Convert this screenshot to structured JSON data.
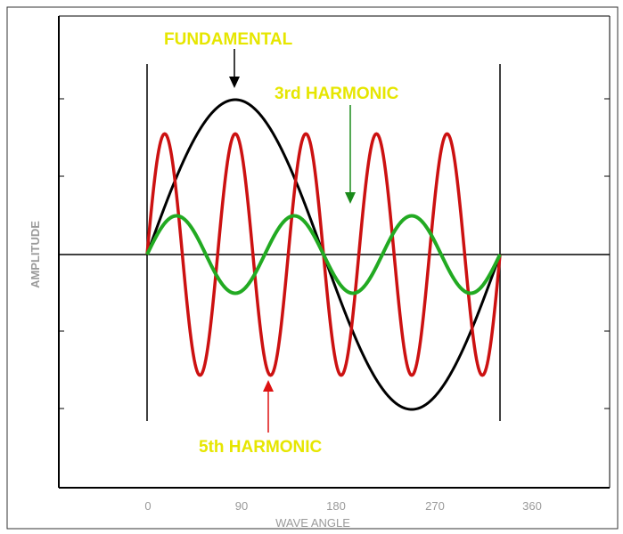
{
  "chart_data": {
    "type": "line",
    "xlabel": "WAVE ANGLE",
    "ylabel": "AMPLITUDE",
    "x_ticks": [
      "0",
      "90",
      "180",
      "270",
      "360"
    ],
    "xlim": [
      0,
      360
    ],
    "ylim": [
      -1.15,
      1.15
    ],
    "grid": false,
    "series": [
      {
        "key": "fundamental",
        "harmonic": 1,
        "amplitude": 1.0,
        "color": "#000000"
      },
      {
        "key": "third",
        "harmonic": 3,
        "amplitude": 0.25,
        "color": "#22aa22"
      },
      {
        "key": "fifth",
        "harmonic": 5,
        "amplitude": 0.78,
        "color": "#cc1111"
      }
    ],
    "annotations": [
      {
        "key": "fundamental",
        "text": "FUNDAMENTAL",
        "color": "#e6e600",
        "arrow_color": "#000000",
        "points_to": {
          "x": 90,
          "y": 1.0
        }
      },
      {
        "key": "third",
        "text": "3rd HARMONIC",
        "color": "#e6e600",
        "arrow_color": "#1a8a1a",
        "points_to": {
          "x": 210,
          "y": 0.25
        }
      },
      {
        "key": "fifth",
        "text": "5th HARMONIC",
        "color": "#e6e600",
        "arrow_color": "#dd1111",
        "points_to": {
          "x": 126,
          "y": -0.78
        }
      }
    ]
  }
}
